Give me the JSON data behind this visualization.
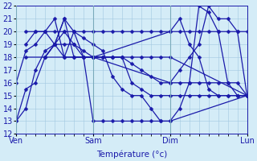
{
  "background_color": "#d4ecf7",
  "grid_color": "#a0c8e0",
  "line_color": "#1a1aaa",
  "marker": "D",
  "marker_size": 2.5,
  "xlabel": "Température (°c)",
  "xlabel_color": "#1a1aaa",
  "tick_color": "#1a1aaa",
  "ylim": [
    12,
    22
  ],
  "yticks": [
    12,
    13,
    14,
    15,
    16,
    17,
    18,
    19,
    20,
    21,
    22
  ],
  "day_labels": [
    "Ven",
    "Sam",
    "Dim",
    "Lun"
  ],
  "day_positions": [
    0,
    8,
    16,
    24
  ],
  "xlim": [
    0,
    24
  ],
  "series": [
    {
      "x": [
        0,
        1,
        2,
        3,
        4,
        5,
        6,
        7,
        8,
        9,
        10,
        11,
        12,
        13,
        14,
        15,
        16,
        17,
        18,
        19,
        20,
        21,
        22,
        23,
        24
      ],
      "y": [
        13,
        15.5,
        16,
        18,
        19,
        20,
        19,
        18,
        18,
        18,
        18,
        18,
        16,
        15.5,
        15,
        15,
        15,
        15,
        15,
        15,
        15,
        15,
        15,
        15,
        15
      ]
    },
    {
      "x": [
        0,
        1,
        2,
        3,
        4,
        5,
        6,
        7,
        8,
        16,
        17,
        18,
        19,
        20,
        21,
        22,
        23,
        24
      ],
      "y": [
        16,
        18.5,
        19,
        20,
        21,
        18,
        20,
        18,
        18,
        20,
        21,
        19,
        18,
        15.5,
        15,
        15,
        15,
        15
      ]
    },
    {
      "x": [
        1,
        2,
        3,
        4,
        5,
        6,
        7,
        8,
        9,
        10,
        11,
        12,
        13,
        14,
        15,
        16,
        17,
        18,
        19,
        20,
        21,
        22,
        23,
        24
      ],
      "y": [
        19,
        20,
        20,
        20,
        20,
        20,
        20,
        20,
        20,
        20,
        20,
        20,
        20,
        20,
        20,
        20,
        20,
        20,
        20,
        20,
        20,
        20,
        20,
        20
      ]
    },
    {
      "x": [
        1,
        2,
        3,
        4,
        5,
        6,
        7,
        8,
        9,
        10,
        11,
        12,
        13,
        14,
        15,
        16,
        24
      ],
      "y": [
        20,
        20,
        20,
        19,
        19,
        19,
        18.5,
        18,
        18,
        18,
        18,
        18,
        18,
        18,
        18,
        18,
        15
      ]
    },
    {
      "x": [
        1,
        8,
        9,
        10,
        11,
        12,
        13,
        14,
        15,
        16,
        17,
        18,
        19,
        20,
        21,
        22,
        23,
        24
      ],
      "y": [
        18,
        18,
        18,
        18,
        18,
        17.5,
        17,
        16.5,
        16,
        16,
        16,
        16,
        16,
        16,
        16,
        16,
        16,
        15
      ]
    },
    {
      "x": [
        0,
        1,
        2,
        3,
        4,
        5,
        6,
        7,
        8,
        9,
        10,
        11,
        12,
        13,
        14,
        15,
        16,
        24
      ],
      "y": [
        13,
        14,
        17,
        18.5,
        19,
        18,
        18,
        18,
        13,
        13,
        13,
        13,
        13,
        13,
        13,
        13,
        13,
        15
      ]
    },
    {
      "x": [
        3,
        4,
        5,
        6,
        7,
        8,
        9,
        10,
        11,
        12,
        13,
        14,
        15,
        16,
        17,
        18,
        19,
        20,
        21,
        22,
        23,
        24
      ],
      "y": [
        18,
        19,
        21,
        20,
        19.5,
        19,
        18.5,
        16.5,
        15.5,
        15,
        15,
        14,
        13,
        13,
        14,
        16,
        22,
        21.5,
        20,
        16,
        15,
        15
      ]
    },
    {
      "x": [
        3,
        4,
        5,
        6,
        7,
        8,
        16,
        17,
        18,
        19,
        20,
        21,
        22,
        23,
        24
      ],
      "y": [
        18,
        19,
        21,
        18,
        18,
        18,
        16,
        17,
        18,
        19,
        22,
        21,
        21,
        20,
        15
      ]
    }
  ]
}
